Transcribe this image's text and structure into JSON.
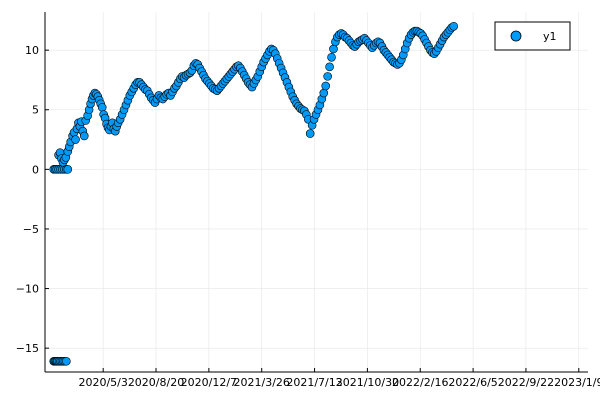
{
  "chart_data": {
    "type": "scatter",
    "title": "",
    "xlabel": "",
    "ylabel": "",
    "x_type": "date",
    "xlim": [
      "2020-01-04",
      "2023-01-28"
    ],
    "ylim": [
      -17,
      13.2
    ],
    "grid": true,
    "legend": {
      "placement": "top-right"
    },
    "x_ticks": [
      {
        "value": "2020-05-03",
        "label": "2020/5/3"
      },
      {
        "value": "2020-08-20",
        "label": "2020/8/20"
      },
      {
        "value": "2020-12-07",
        "label": "2020/12/7"
      },
      {
        "value": "2021-03-26",
        "label": "2021/3/26"
      },
      {
        "value": "2021-07-13",
        "label": "2021/7/13"
      },
      {
        "value": "2021-10-30",
        "label": "2021/10/30"
      },
      {
        "value": "2022-02-16",
        "label": "2022/2/16"
      },
      {
        "value": "2022-06-05",
        "label": "2022/6/5"
      },
      {
        "value": "2022-09-22",
        "label": "2022/9/22"
      },
      {
        "value": "2023-01-09",
        "label": "2023/1/9"
      }
    ],
    "y_ticks": [
      {
        "value": -15,
        "label": "−15"
      },
      {
        "value": -10,
        "label": "−10"
      },
      {
        "value": -5,
        "label": "−5"
      },
      {
        "value": 0,
        "label": "0"
      },
      {
        "value": 5,
        "label": "5"
      },
      {
        "value": 10,
        "label": "10"
      }
    ],
    "series": [
      {
        "name": "y1",
        "color": "#009af9",
        "points": [
          [
            "2020-01-22",
            -16.1
          ],
          [
            "2020-01-24",
            -16.1
          ],
          [
            "2020-01-26",
            -16.1
          ],
          [
            "2020-01-28",
            -16.1
          ],
          [
            "2020-01-30",
            -16.1
          ],
          [
            "2020-02-02",
            -16.1
          ],
          [
            "2020-02-05",
            -16.1
          ],
          [
            "2020-02-08",
            -16.1
          ],
          [
            "2020-02-11",
            -16.1
          ],
          [
            "2020-02-14",
            -16.1
          ],
          [
            "2020-02-17",
            -16.1
          ],
          [
            "2020-01-22",
            0.0
          ],
          [
            "2020-01-25",
            0.0
          ],
          [
            "2020-01-28",
            0.0
          ],
          [
            "2020-02-01",
            0.0
          ],
          [
            "2020-02-05",
            0.0
          ],
          [
            "2020-02-09",
            0.0
          ],
          [
            "2020-02-13",
            0.0
          ],
          [
            "2020-02-17",
            0.0
          ],
          [
            "2020-02-20",
            0.0
          ],
          [
            "2020-02-01",
            1.2
          ],
          [
            "2020-02-04",
            1.4
          ],
          [
            "2020-02-07",
            0.9
          ],
          [
            "2020-02-10",
            0.6
          ],
          [
            "2020-02-13",
            0.8
          ],
          [
            "2020-02-16",
            1.0
          ],
          [
            "2020-02-20",
            1.5
          ],
          [
            "2020-02-23",
            1.9
          ],
          [
            "2020-02-26",
            2.3
          ],
          [
            "2020-03-01",
            2.8
          ],
          [
            "2020-03-04",
            3.1
          ],
          [
            "2020-03-07",
            2.5
          ],
          [
            "2020-03-10",
            3.4
          ],
          [
            "2020-03-13",
            3.9
          ],
          [
            "2020-03-16",
            3.6
          ],
          [
            "2020-03-19",
            4.0
          ],
          [
            "2020-03-22",
            3.2
          ],
          [
            "2020-03-25",
            2.8
          ],
          [
            "2020-03-28",
            4.1
          ],
          [
            "2020-04-01",
            4.5
          ],
          [
            "2020-04-04",
            5.0
          ],
          [
            "2020-04-07",
            5.5
          ],
          [
            "2020-04-10",
            5.9
          ],
          [
            "2020-04-13",
            6.2
          ],
          [
            "2020-04-16",
            6.4
          ],
          [
            "2020-04-19",
            6.3
          ],
          [
            "2020-04-22",
            6.1
          ],
          [
            "2020-04-25",
            5.8
          ],
          [
            "2020-04-28",
            5.5
          ],
          [
            "2020-05-01",
            5.2
          ],
          [
            "2020-05-04",
            4.6
          ],
          [
            "2020-05-07",
            4.3
          ],
          [
            "2020-05-10",
            3.8
          ],
          [
            "2020-05-13",
            3.5
          ],
          [
            "2020-05-16",
            3.3
          ],
          [
            "2020-05-19",
            3.6
          ],
          [
            "2020-05-22",
            3.9
          ],
          [
            "2020-05-25",
            3.4
          ],
          [
            "2020-05-28",
            3.2
          ],
          [
            "2020-05-31",
            3.6
          ],
          [
            "2020-06-03",
            3.9
          ],
          [
            "2020-06-07",
            4.2
          ],
          [
            "2020-06-11",
            4.6
          ],
          [
            "2020-06-15",
            5.0
          ],
          [
            "2020-06-19",
            5.4
          ],
          [
            "2020-06-23",
            5.8
          ],
          [
            "2020-06-27",
            6.2
          ],
          [
            "2020-07-01",
            6.5
          ],
          [
            "2020-07-05",
            6.8
          ],
          [
            "2020-07-09",
            7.1
          ],
          [
            "2020-07-13",
            7.3
          ],
          [
            "2020-07-17",
            7.3
          ],
          [
            "2020-07-21",
            7.1
          ],
          [
            "2020-07-25",
            6.9
          ],
          [
            "2020-07-29",
            6.7
          ],
          [
            "2020-08-02",
            6.6
          ],
          [
            "2020-08-06",
            6.3
          ],
          [
            "2020-08-10",
            6.0
          ],
          [
            "2020-08-14",
            5.8
          ],
          [
            "2020-08-18",
            5.6
          ],
          [
            "2020-08-22",
            5.9
          ],
          [
            "2020-08-26",
            6.2
          ],
          [
            "2020-08-30",
            6.0
          ],
          [
            "2020-09-03",
            5.9
          ],
          [
            "2020-09-07",
            6.1
          ],
          [
            "2020-09-11",
            6.3
          ],
          [
            "2020-09-15",
            6.4
          ],
          [
            "2020-09-19",
            6.2
          ],
          [
            "2020-09-23",
            6.5
          ],
          [
            "2020-09-27",
            6.8
          ],
          [
            "2020-10-01",
            7.0
          ],
          [
            "2020-10-05",
            7.3
          ],
          [
            "2020-10-09",
            7.6
          ],
          [
            "2020-10-13",
            7.8
          ],
          [
            "2020-10-17",
            7.7
          ],
          [
            "2020-10-21",
            7.9
          ],
          [
            "2020-10-25",
            8.0
          ],
          [
            "2020-10-29",
            8.1
          ],
          [
            "2020-11-02",
            8.3
          ],
          [
            "2020-11-06",
            8.7
          ],
          [
            "2020-11-10",
            8.9
          ],
          [
            "2020-11-14",
            8.8
          ],
          [
            "2020-11-18",
            8.5
          ],
          [
            "2020-11-22",
            8.2
          ],
          [
            "2020-11-26",
            7.9
          ],
          [
            "2020-11-30",
            7.6
          ],
          [
            "2020-12-04",
            7.4
          ],
          [
            "2020-12-08",
            7.2
          ],
          [
            "2020-12-12",
            7.0
          ],
          [
            "2020-12-16",
            6.8
          ],
          [
            "2020-12-20",
            6.7
          ],
          [
            "2020-12-24",
            6.6
          ],
          [
            "2020-12-28",
            6.8
          ],
          [
            "2021-01-01",
            7.0
          ],
          [
            "2021-01-05",
            7.2
          ],
          [
            "2021-01-09",
            7.4
          ],
          [
            "2021-01-13",
            7.6
          ],
          [
            "2021-01-17",
            7.8
          ],
          [
            "2021-01-21",
            8.0
          ],
          [
            "2021-01-25",
            8.2
          ],
          [
            "2021-01-29",
            8.4
          ],
          [
            "2021-02-02",
            8.6
          ],
          [
            "2021-02-06",
            8.7
          ],
          [
            "2021-02-10",
            8.5
          ],
          [
            "2021-02-14",
            8.2
          ],
          [
            "2021-02-18",
            7.9
          ],
          [
            "2021-02-22",
            7.6
          ],
          [
            "2021-02-26",
            7.3
          ],
          [
            "2021-03-02",
            7.1
          ],
          [
            "2021-03-06",
            6.9
          ],
          [
            "2021-03-10",
            7.2
          ],
          [
            "2021-03-14",
            7.5
          ],
          [
            "2021-03-18",
            7.8
          ],
          [
            "2021-03-22",
            8.2
          ],
          [
            "2021-03-26",
            8.6
          ],
          [
            "2021-03-30",
            9.0
          ],
          [
            "2021-04-03",
            9.3
          ],
          [
            "2021-04-07",
            9.6
          ],
          [
            "2021-04-11",
            9.9
          ],
          [
            "2021-04-15",
            10.1
          ],
          [
            "2021-04-19",
            10.0
          ],
          [
            "2021-04-23",
            9.7
          ],
          [
            "2021-04-27",
            9.3
          ],
          [
            "2021-05-01",
            8.9
          ],
          [
            "2021-05-05",
            8.5
          ],
          [
            "2021-05-09",
            8.1
          ],
          [
            "2021-05-13",
            7.7
          ],
          [
            "2021-05-17",
            7.3
          ],
          [
            "2021-05-21",
            6.9
          ],
          [
            "2021-05-25",
            6.5
          ],
          [
            "2021-05-29",
            6.1
          ],
          [
            "2021-06-02",
            5.8
          ],
          [
            "2021-06-06",
            5.5
          ],
          [
            "2021-06-10",
            5.3
          ],
          [
            "2021-06-14",
            5.1
          ],
          [
            "2021-06-18",
            5.0
          ],
          [
            "2021-06-22",
            4.9
          ],
          [
            "2021-06-26",
            4.6
          ],
          [
            "2021-06-30",
            4.2
          ],
          [
            "2021-07-04",
            3.0
          ],
          [
            "2021-07-08",
            3.7
          ],
          [
            "2021-07-12",
            4.2
          ],
          [
            "2021-07-16",
            4.6
          ],
          [
            "2021-07-20",
            5.0
          ],
          [
            "2021-07-24",
            5.4
          ],
          [
            "2021-07-28",
            5.9
          ],
          [
            "2021-08-01",
            6.4
          ],
          [
            "2021-08-05",
            7.0
          ],
          [
            "2021-08-09",
            7.8
          ],
          [
            "2021-08-13",
            8.6
          ],
          [
            "2021-08-17",
            9.4
          ],
          [
            "2021-08-21",
            10.1
          ],
          [
            "2021-08-25",
            10.7
          ],
          [
            "2021-08-29",
            11.1
          ],
          [
            "2021-09-02",
            11.3
          ],
          [
            "2021-09-06",
            11.4
          ],
          [
            "2021-09-10",
            11.3
          ],
          [
            "2021-09-14",
            11.1
          ],
          [
            "2021-09-18",
            11.0
          ],
          [
            "2021-09-22",
            10.8
          ],
          [
            "2021-09-26",
            10.6
          ],
          [
            "2021-09-30",
            10.4
          ],
          [
            "2021-10-04",
            10.3
          ],
          [
            "2021-10-08",
            10.5
          ],
          [
            "2021-10-12",
            10.7
          ],
          [
            "2021-10-16",
            10.8
          ],
          [
            "2021-10-20",
            10.9
          ],
          [
            "2021-10-24",
            11.0
          ],
          [
            "2021-10-28",
            10.8
          ],
          [
            "2021-11-01",
            10.6
          ],
          [
            "2021-11-05",
            10.4
          ],
          [
            "2021-11-09",
            10.2
          ],
          [
            "2021-11-13",
            10.4
          ],
          [
            "2021-11-17",
            10.6
          ],
          [
            "2021-11-21",
            10.7
          ],
          [
            "2021-11-25",
            10.6
          ],
          [
            "2021-11-29",
            10.3
          ],
          [
            "2021-12-03",
            10.0
          ],
          [
            "2021-12-07",
            9.8
          ],
          [
            "2021-12-11",
            9.6
          ],
          [
            "2021-12-15",
            9.4
          ],
          [
            "2021-12-19",
            9.2
          ],
          [
            "2021-12-23",
            9.0
          ],
          [
            "2021-12-27",
            8.9
          ],
          [
            "2021-12-31",
            8.8
          ],
          [
            "2022-01-04",
            8.9
          ],
          [
            "2022-01-08",
            9.2
          ],
          [
            "2022-01-12",
            9.6
          ],
          [
            "2022-01-16",
            10.1
          ],
          [
            "2022-01-20",
            10.6
          ],
          [
            "2022-01-24",
            11.0
          ],
          [
            "2022-01-28",
            11.3
          ],
          [
            "2022-02-01",
            11.5
          ],
          [
            "2022-02-05",
            11.6
          ],
          [
            "2022-02-09",
            11.6
          ],
          [
            "2022-02-13",
            11.5
          ],
          [
            "2022-02-17",
            11.4
          ],
          [
            "2022-02-21",
            11.2
          ],
          [
            "2022-02-25",
            10.9
          ],
          [
            "2022-03-01",
            10.6
          ],
          [
            "2022-03-05",
            10.3
          ],
          [
            "2022-03-09",
            10.0
          ],
          [
            "2022-03-13",
            9.8
          ],
          [
            "2022-03-17",
            9.7
          ],
          [
            "2022-03-21",
            9.9
          ],
          [
            "2022-03-25",
            10.2
          ],
          [
            "2022-03-29",
            10.5
          ],
          [
            "2022-04-02",
            10.8
          ],
          [
            "2022-04-06",
            11.1
          ],
          [
            "2022-04-10",
            11.3
          ],
          [
            "2022-04-14",
            11.5
          ],
          [
            "2022-04-18",
            11.7
          ],
          [
            "2022-04-22",
            11.9
          ],
          [
            "2022-04-26",
            12.0
          ]
        ]
      }
    ]
  }
}
